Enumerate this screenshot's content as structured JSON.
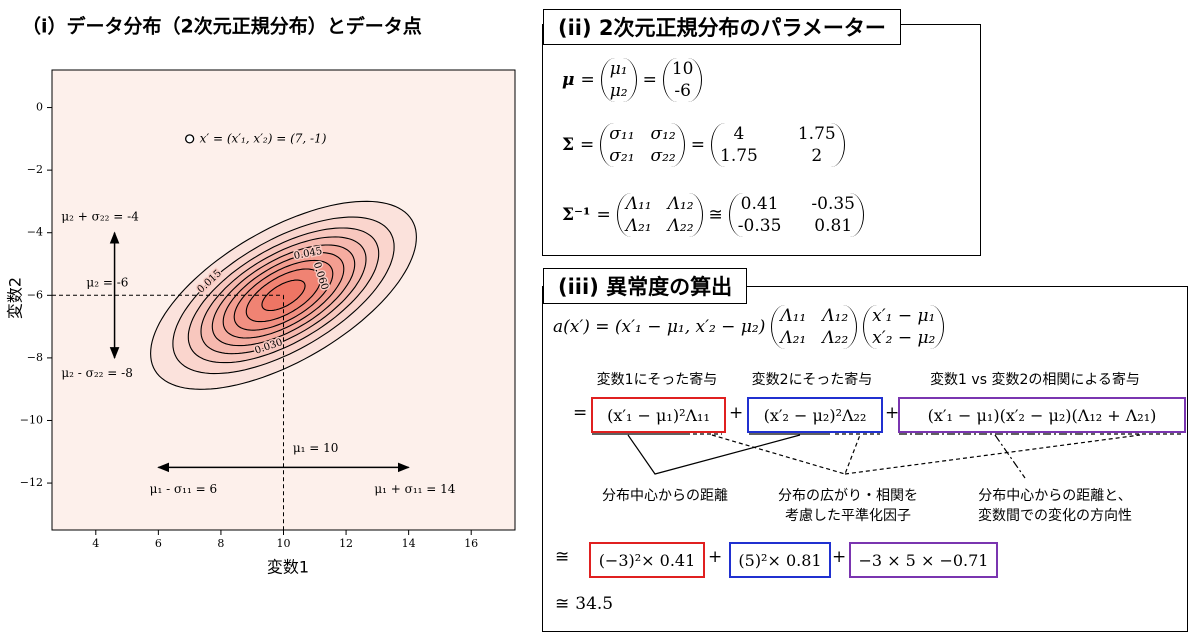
{
  "chart_data": {
    "type": "contour",
    "title": "（i）データ分布（2次元正規分布）とデータ点",
    "xlabel": "変数1",
    "ylabel": "変数2",
    "xlim": [
      2.6,
      17.4
    ],
    "ylim": [
      -13.5,
      1.2
    ],
    "xticks": [
      4,
      6,
      8,
      10,
      12,
      14,
      16
    ],
    "yticks": [
      0,
      {
        "value": -2,
        "label": "−2"
      },
      {
        "value": -4,
        "label": "−4"
      },
      {
        "value": -6,
        "label": "−6"
      },
      {
        "value": -8,
        "label": "−8"
      },
      {
        "value": -10,
        "label": "−10"
      },
      {
        "value": -12,
        "label": "−12"
      }
    ],
    "levels": [
      0.0075,
      0.015,
      0.0225,
      0.03,
      0.0375,
      0.045,
      0.0525,
      0.06,
      0.0675
    ],
    "level_labels": [
      {
        "value": 0.015,
        "label": "0.015"
      },
      {
        "value": 0.045,
        "label": "0.045"
      },
      {
        "value": 0.06,
        "label": "0.060"
      },
      {
        "value": 0.03,
        "label": "0.030"
      }
    ],
    "fill_colors": [
      "#fdf0eb",
      "#ee7564"
    ],
    "point": {
      "x": 7,
      "y": -1,
      "label": "x′ = (x′₁, x′₂) = (7, -1)"
    },
    "annotations": {
      "mu2_plus": "μ₂ + σ₂₂ = -4",
      "mu2": "μ₂ = -6",
      "mu2_minus": "μ₂ - σ₂₂ = -8",
      "mu1": "μ₁ = 10",
      "mu1_minus": "μ₁ - σ₁₁ = 6",
      "mu1_plus": "μ₁ + σ₁₁ = 14"
    }
  },
  "parameters": {
    "title": "(ii) 2次元正規分布のパラメーター",
    "equals": "=",
    "approx": "≅",
    "mu": {
      "symbol": "μ",
      "entries": [
        "μ₁",
        "μ₂"
      ],
      "values": [
        10,
        -6
      ]
    },
    "sigma": {
      "symbol": "Σ",
      "entries": [
        [
          "σ₁₁",
          "σ₁₂"
        ],
        [
          "σ₂₁",
          "σ₂₂"
        ]
      ],
      "values": [
        [
          4,
          1.75
        ],
        [
          1.75,
          2
        ]
      ]
    },
    "sigma_inv": {
      "symbol": "Σ⁻¹",
      "entries": [
        [
          "Λ₁₁",
          "Λ₁₂"
        ],
        [
          "Λ₂₁",
          "Λ₂₂"
        ]
      ],
      "values": [
        [
          0.41,
          -0.35
        ],
        [
          -0.35,
          0.81
        ]
      ]
    }
  },
  "anomaly": {
    "title": "(iii) 異常度の算出",
    "lhs": "a(x′) = (x′₁ − μ₁, x′₂ − μ₂)",
    "vector": [
      "x′₁ − μ₁",
      "x′₂ − μ₂"
    ],
    "headings": [
      "変数1にそった寄与",
      "変数2にそった寄与",
      "変数1 vs 変数2の相関による寄与"
    ],
    "plus": "+",
    "terms": [
      "(x′₁ − μ₁)²Λ₁₁",
      "(x′₂ − μ₂)²Λ₂₂",
      "(x′₁ − μ₁)(x′₂ − μ₂)(Λ₁₂ + Λ₂₁)"
    ],
    "notes": [
      "分布中心からの距離",
      "分布の広がり・相関を\n考慮した平準化因子",
      "分布中心からの距離と、\n変数間での変化の方向性"
    ],
    "numeric_terms": [
      "(−3)²× 0.41",
      "(5)²× 0.81",
      "−3 × 5 × −0.71"
    ],
    "result": "34.5"
  }
}
